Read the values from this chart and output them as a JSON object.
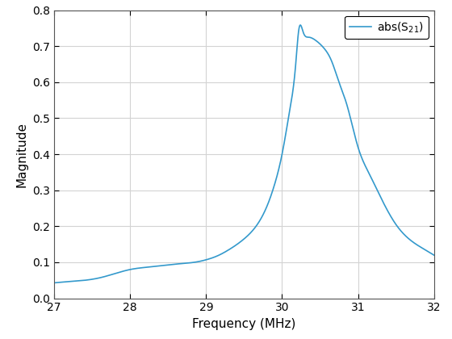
{
  "xlabel": "Frequency (MHz)",
  "ylabel": "Magnitude",
  "legend_label": "abs(S_{21})",
  "line_color": "#3399cc",
  "xlim": [
    27,
    32
  ],
  "ylim": [
    0,
    0.8
  ],
  "xticks": [
    27,
    28,
    29,
    30,
    31,
    32
  ],
  "yticks": [
    0,
    0.1,
    0.2,
    0.3,
    0.4,
    0.5,
    0.6,
    0.7,
    0.8
  ],
  "background_color": "#ffffff",
  "grid_color": "#d3d3d3",
  "figsize": [
    5.6,
    4.2
  ],
  "dpi": 100,
  "freq_points": [
    27.0,
    27.3,
    27.6,
    28.0,
    28.3,
    28.6,
    28.9,
    29.0,
    29.15,
    29.3,
    29.5,
    29.65,
    29.8,
    29.9,
    30.0,
    30.1,
    30.18,
    30.22,
    30.28,
    30.35,
    30.45,
    30.55,
    30.65,
    30.75,
    30.85,
    31.0,
    31.15,
    31.3,
    31.5,
    31.7,
    32.0
  ],
  "mag_points": [
    0.043,
    0.048,
    0.057,
    0.08,
    0.088,
    0.095,
    0.102,
    0.107,
    0.118,
    0.135,
    0.165,
    0.198,
    0.255,
    0.315,
    0.4,
    0.52,
    0.65,
    0.745,
    0.738,
    0.725,
    0.715,
    0.695,
    0.66,
    0.6,
    0.54,
    0.42,
    0.345,
    0.28,
    0.205,
    0.16,
    0.12
  ]
}
